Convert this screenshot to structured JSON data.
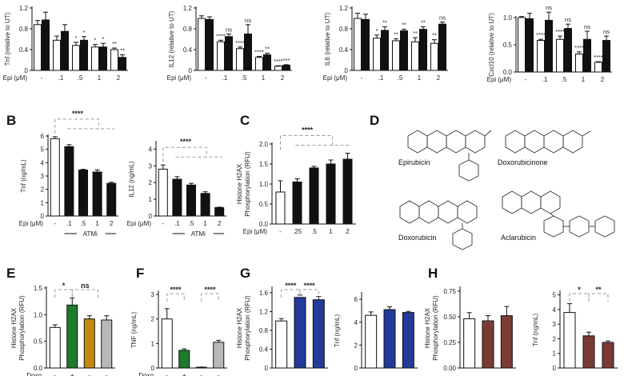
{
  "panel_labels": {
    "B": "B",
    "C": "C",
    "D": "D",
    "E": "E",
    "F": "F",
    "G": "G",
    "H": "H"
  },
  "colors": {
    "black": "#111111",
    "white": "#ffffff",
    "green": "#1f7a2e",
    "gold": "#c48a10",
    "grey": "#b8b8b8",
    "blue": "#233a9a",
    "brown": "#7a3b34",
    "sig_line": "#9a9a9a"
  },
  "panel_D": {
    "compounds": [
      "Epirubicin",
      "Doxorubicinone",
      "Doxorubicin",
      "Aclarubicin"
    ]
  },
  "chart_data": [
    {
      "id": "A1",
      "type": "bar",
      "ylabel": "Tnf (relative to UT)",
      "xlabel": "Epi (μM)",
      "categories": [
        "-",
        ".1",
        ".5",
        "1",
        "2"
      ],
      "ylim": [
        0,
        1.2
      ],
      "yticks": [
        "0",
        "0.4",
        "0.8",
        "1.2"
      ],
      "ytick_values": [
        0,
        0.4,
        0.8,
        1.2
      ],
      "grouped": true,
      "group_colors": [
        "#ffffff",
        "#111111"
      ],
      "series": [
        {
          "values": [
            0.88,
            0.58,
            0.48,
            0.45,
            0.4
          ],
          "errors": [
            0.08,
            0.08,
            0.06,
            0.05,
            0.03
          ]
        },
        {
          "values": [
            0.97,
            0.75,
            0.58,
            0.45,
            0.25
          ],
          "errors": [
            0.15,
            0.13,
            0.07,
            0.07,
            0.05
          ]
        }
      ],
      "sig": [
        {
          "cat": 2,
          "s": 0,
          "text": "*"
        },
        {
          "cat": 2,
          "s": 1,
          "text": "*"
        },
        {
          "cat": 3,
          "s": 0,
          "text": "*"
        },
        {
          "cat": 3,
          "s": 1,
          "text": "*"
        },
        {
          "cat": 4,
          "s": 0,
          "text": "**"
        },
        {
          "cat": 4,
          "s": 1,
          "text": "**"
        }
      ]
    },
    {
      "id": "A2",
      "type": "bar",
      "ylabel": "IL12 (relative to UT)",
      "xlabel": "Epi (μM)",
      "categories": [
        "-",
        ".1",
        ".5",
        "1",
        "2"
      ],
      "ylim": [
        0,
        1.2
      ],
      "yticks": [
        "0",
        "0.4",
        "0.8",
        "1.2"
      ],
      "ytick_values": [
        0,
        0.4,
        0.8,
        1.2
      ],
      "grouped": true,
      "group_colors": [
        "#ffffff",
        "#111111"
      ],
      "series": [
        {
          "values": [
            1.0,
            0.55,
            0.42,
            0.25,
            0.08
          ],
          "errors": [
            0.05,
            0.03,
            0.03,
            0.02,
            0.01
          ]
        },
        {
          "values": [
            0.98,
            0.65,
            0.7,
            0.3,
            0.1
          ],
          "errors": [
            0.05,
            0.05,
            0.18,
            0.03,
            0.01
          ]
        }
      ],
      "sig": [
        {
          "cat": 1,
          "s": 0,
          "text": "****"
        },
        {
          "cat": 1,
          "s": 1,
          "text": "ns"
        },
        {
          "cat": 2,
          "s": 0,
          "text": "****"
        },
        {
          "cat": 2,
          "s": 1,
          "text": "ns"
        },
        {
          "cat": 3,
          "s": 0,
          "text": "****"
        },
        {
          "cat": 3,
          "s": 1,
          "text": "**"
        },
        {
          "cat": 4,
          "s": 0,
          "text": "****"
        },
        {
          "cat": 4,
          "s": 1,
          "text": "***"
        }
      ]
    },
    {
      "id": "A3",
      "type": "bar",
      "ylabel": "IL6 (relative to UT)",
      "xlabel": "Epi (μM)",
      "categories": [
        "-",
        ".1",
        ".5",
        "1",
        "2"
      ],
      "ylim": [
        0,
        1.2
      ],
      "yticks": [
        "0",
        "0.4",
        "0.8",
        "1.2"
      ],
      "ytick_values": [
        0,
        0.4,
        0.8,
        1.2
      ],
      "grouped": true,
      "group_colors": [
        "#ffffff",
        "#111111"
      ],
      "series": [
        {
          "values": [
            1.0,
            0.62,
            0.57,
            0.55,
            0.52
          ],
          "errors": [
            0.1,
            0.06,
            0.04,
            0.08,
            0.07
          ]
        },
        {
          "values": [
            0.98,
            0.77,
            0.76,
            0.79,
            0.89
          ],
          "errors": [
            0.1,
            0.07,
            0.03,
            0.05,
            0.04
          ]
        }
      ],
      "sig": [
        {
          "cat": 1,
          "s": 0,
          "text": "*"
        },
        {
          "cat": 1,
          "s": 1,
          "text": "**"
        },
        {
          "cat": 2,
          "s": 0,
          "text": "**"
        },
        {
          "cat": 2,
          "s": 1,
          "text": "**"
        },
        {
          "cat": 3,
          "s": 0,
          "text": "**"
        },
        {
          "cat": 3,
          "s": 1,
          "text": "**"
        },
        {
          "cat": 4,
          "s": 0,
          "text": "**"
        },
        {
          "cat": 4,
          "s": 1,
          "text": "ns"
        }
      ]
    },
    {
      "id": "A4",
      "type": "bar",
      "ylabel": "Cxcl10 (relative to UT)",
      "xlabel": "Epi (μM)",
      "categories": [
        "-",
        ".1",
        ".5",
        "1",
        "2"
      ],
      "ylim": [
        0,
        1.0
      ],
      "yticks": [
        "0.0",
        "0.5",
        "1.0"
      ],
      "ytick_values": [
        0,
        0.5,
        1.0
      ],
      "grouped": true,
      "group_colors": [
        "#ffffff",
        "#111111"
      ],
      "series": [
        {
          "values": [
            1.0,
            0.58,
            0.6,
            0.33,
            0.18
          ],
          "errors": [
            0.02,
            0.02,
            0.06,
            0.04,
            0.01
          ]
        },
        {
          "values": [
            0.98,
            0.95,
            0.8,
            0.6,
            0.58
          ],
          "errors": [
            0.1,
            0.15,
            0.08,
            0.15,
            0.08
          ]
        }
      ],
      "sig": [
        {
          "cat": 1,
          "s": 0,
          "text": "****"
        },
        {
          "cat": 1,
          "s": 1,
          "text": "ns"
        },
        {
          "cat": 2,
          "s": 0,
          "text": "****"
        },
        {
          "cat": 2,
          "s": 1,
          "text": "ns"
        },
        {
          "cat": 3,
          "s": 0,
          "text": "****"
        },
        {
          "cat": 3,
          "s": 1,
          "text": "ns"
        },
        {
          "cat": 4,
          "s": 0,
          "text": "****"
        },
        {
          "cat": 4,
          "s": 1,
          "text": "ns"
        }
      ]
    },
    {
      "id": "B1",
      "type": "bar",
      "ylabel": "Tnf (ng/mL)",
      "xlabel": "Epi (μM)",
      "categories": [
        "-",
        ".1",
        ".5",
        "1",
        "2"
      ],
      "group_label": "ATMi",
      "ylim": [
        0,
        6
      ],
      "yticks": [
        "0",
        "1",
        "2",
        "3",
        "4",
        "5",
        "6"
      ],
      "ytick_values": [
        0,
        1,
        2,
        3,
        4,
        5,
        6
      ],
      "colors": [
        "#ffffff",
        "#111111",
        "#111111",
        "#111111",
        "#111111"
      ],
      "values": [
        5.8,
        5.2,
        3.45,
        3.3,
        2.45
      ],
      "errors": [
        0.15,
        0.15,
        0.05,
        0.15,
        0.08
      ],
      "bracket": "****"
    },
    {
      "id": "B2",
      "type": "bar",
      "ylabel": "IL12 (ng/mL)",
      "xlabel": "Epi (μM)",
      "categories": [
        "-",
        ".1",
        ".5",
        "1",
        "2"
      ],
      "group_label": "ATMi",
      "ylim": [
        0,
        4.4
      ],
      "yticks": [
        "0",
        "1",
        "2",
        "3",
        "4"
      ],
      "ytick_values": [
        0,
        1,
        2,
        3,
        4
      ],
      "colors": [
        "#ffffff",
        "#111111",
        "#111111",
        "#111111",
        "#111111"
      ],
      "values": [
        2.8,
        2.2,
        1.85,
        1.35,
        0.5
      ],
      "errors": [
        0.25,
        0.15,
        0.1,
        0.1,
        0.03
      ],
      "bracket": "****"
    },
    {
      "id": "C",
      "type": "bar",
      "ylabel": "Histone H2AX Phosphorylation (RFU)",
      "xlabel": "Epi (μM)",
      "categories": [
        "-",
        ".25",
        ".5",
        "1",
        "2"
      ],
      "ylim": [
        0,
        2.0
      ],
      "yticks": [
        "0.0",
        "0.5",
        "1.0",
        "1.5",
        "2.0"
      ],
      "ytick_values": [
        0,
        0.5,
        1.0,
        1.5,
        2.0
      ],
      "colors": [
        "#ffffff",
        "#111111",
        "#111111",
        "#111111",
        "#111111"
      ],
      "values": [
        0.8,
        1.05,
        1.4,
        1.5,
        1.62
      ],
      "errors": [
        0.28,
        0.08,
        0.04,
        0.1,
        0.15
      ],
      "bracket": "****"
    },
    {
      "id": "E",
      "type": "bar",
      "ylabel": "Histone H2AX Phosphorylation (RFU)",
      "xlabel": "Doxo",
      "categories": [
        "-",
        "+",
        "-",
        "-"
      ],
      "ylim": [
        0,
        1.5
      ],
      "yticks": [
        "0.0",
        "0.5",
        "1.0",
        "1.5"
      ],
      "ytick_values": [
        0,
        0.5,
        1.0,
        1.5
      ],
      "colors": [
        "#ffffff",
        "#1f7a2e",
        "#c48a10",
        "#b8b8b8"
      ],
      "values": [
        0.76,
        1.18,
        0.92,
        0.9
      ],
      "errors": [
        0.05,
        0.13,
        0.06,
        0.08
      ],
      "sig_pair": [
        "*",
        "ns"
      ]
    },
    {
      "id": "F",
      "type": "bar",
      "ylabel": "TNF (ng/mL)",
      "xlabel": "Doxo",
      "categories": [
        "-",
        "+",
        "-",
        "-"
      ],
      "ylim": [
        0,
        3.1
      ],
      "yticks": [
        "0",
        "1",
        "2",
        "3"
      ],
      "ytick_values": [
        0,
        1,
        2,
        3
      ],
      "colors": [
        "#ffffff",
        "#1f7a2e",
        "#c48a10",
        "#b8b8b8"
      ],
      "values": [
        2.0,
        0.72,
        0.03,
        1.05
      ],
      "errors": [
        0.42,
        0.06,
        0.01,
        0.08
      ],
      "sig_pair": [
        "****",
        "****"
      ]
    },
    {
      "id": "G1",
      "type": "bar",
      "ylabel": "Histone H2AX Phosphorylation (RFU)",
      "categories": [
        "",
        "",
        ""
      ],
      "ylim": [
        0,
        1.7
      ],
      "yticks": [
        "0",
        "0.4",
        "0.8",
        "1.2",
        "1.6"
      ],
      "ytick_values": [
        0,
        0.4,
        0.8,
        1.2,
        1.6
      ],
      "colors": [
        "#ffffff",
        "#233a9a",
        "#233a9a"
      ],
      "values": [
        1.0,
        1.5,
        1.45
      ],
      "errors": [
        0.05,
        0.05,
        0.07
      ],
      "sig_pair": [
        "****",
        "****"
      ]
    },
    {
      "id": "G2",
      "type": "bar",
      "ylabel": "Tnf (ng/mL)",
      "categories": [
        "",
        "",
        ""
      ],
      "ylim": [
        0,
        6.5
      ],
      "yticks": [
        "0",
        "2",
        "4",
        "6"
      ],
      "ytick_values": [
        0,
        2,
        4,
        6
      ],
      "colors": [
        "#ffffff",
        "#233a9a",
        "#233a9a"
      ],
      "values": [
        4.6,
        5.1,
        4.85
      ],
      "errors": [
        0.3,
        0.25,
        0.1
      ]
    },
    {
      "id": "H1",
      "type": "bar",
      "ylabel": "Histone H2AX Phosphorylation (RFU)",
      "categories": [
        "",
        "",
        ""
      ],
      "ylim": [
        0,
        0.78
      ],
      "yticks": [
        "0.00",
        "0.25",
        "0.50",
        "0.75"
      ],
      "ytick_values": [
        0,
        0.25,
        0.5,
        0.75
      ],
      "colors": [
        "#ffffff",
        "#7a3b34",
        "#7a3b34"
      ],
      "values": [
        0.48,
        0.46,
        0.51
      ],
      "errors": [
        0.06,
        0.05,
        0.09
      ]
    },
    {
      "id": "H2",
      "type": "bar",
      "ylabel": "Tnf (ng/mL)",
      "categories": [
        "",
        "",
        ""
      ],
      "ylim": [
        0,
        5.2
      ],
      "yticks": [
        "0",
        "1",
        "2",
        "3",
        "4",
        "5"
      ],
      "ytick_values": [
        0,
        1,
        2,
        3,
        4,
        5
      ],
      "colors": [
        "#ffffff",
        "#7a3b34",
        "#7a3b34"
      ],
      "values": [
        3.8,
        2.2,
        1.75
      ],
      "errors": [
        0.6,
        0.25,
        0.1
      ],
      "sig_pair": [
        "*",
        "**"
      ]
    }
  ]
}
